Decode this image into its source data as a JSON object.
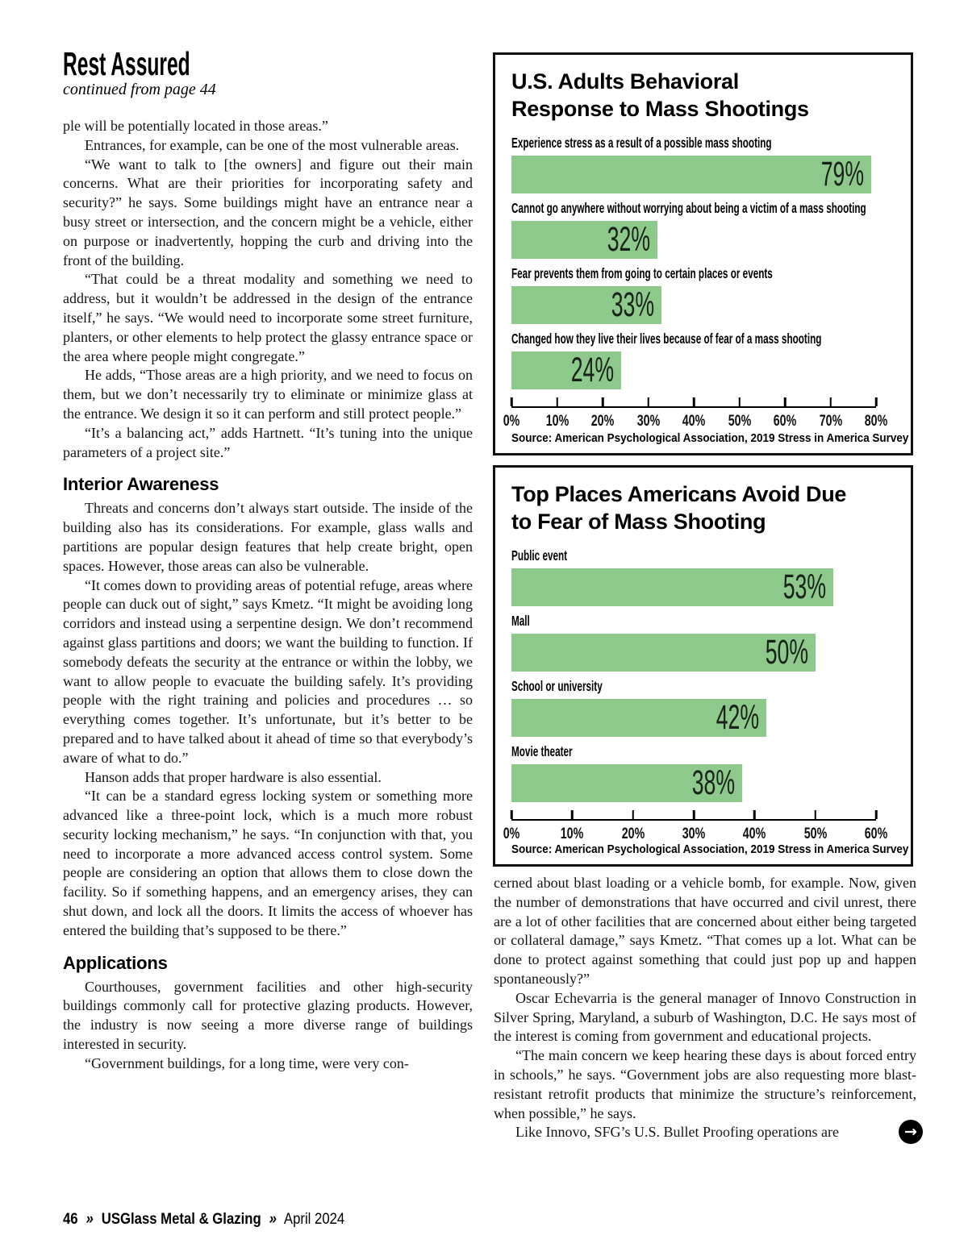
{
  "article": {
    "title": "Rest Assured",
    "continuation_note": "continued from page 44",
    "continue_arrow_glyph": "→",
    "left_column": [
      {
        "type": "p",
        "indent": false,
        "text": "ple will be potentially located in those areas.”"
      },
      {
        "type": "p",
        "indent": true,
        "text": "Entrances, for example, can be one of the most vulnerable areas."
      },
      {
        "type": "p",
        "indent": true,
        "text": "“We want to talk to [the owners] and figure out their main concerns. What are their priorities for incorporating safety and security?” he says. Some buildings might have an entrance near a busy street or intersection, and the concern might be a vehicle, either on purpose or inadvertently, hopping the curb and driving into the front of the building."
      },
      {
        "type": "p",
        "indent": true,
        "text": "“That could be a threat modality and something we need to address, but it wouldn’t be addressed in the design of the entrance itself,” he says. “We would need to incorporate some street furniture, planters, or other elements to help protect the glassy entrance space or the area where people might congregate.”"
      },
      {
        "type": "p",
        "indent": true,
        "text": "He adds, “Those areas are a high priority, and we need to focus on them, but we don’t necessarily try to eliminate or minimize glass at the entrance. We design it so it can perform and still protect people.”"
      },
      {
        "type": "p",
        "indent": true,
        "text": "“It’s a balancing act,” adds Hartnett. “It’s tuning into the unique parameters of a project site.”"
      },
      {
        "type": "h",
        "text": "Interior Awareness"
      },
      {
        "type": "p",
        "indent": true,
        "text": "Threats and concerns don’t always start outside. The inside of the building also has its considerations. For example, glass walls and partitions are popular design features that help create bright, open spaces. However, those areas can also be vulnerable."
      },
      {
        "type": "p",
        "indent": true,
        "text": "“It comes down to providing areas of potential refuge, areas where people can duck out of sight,” says Kmetz. “It might be avoiding long corridors and instead using a serpentine design. We don’t recommend against glass partitions and doors; we want the building to function. If somebody defeats the security at the entrance or within the lobby, we want to allow people to evacuate the building safely. It’s providing people with the right training and policies and procedures … so everything comes together. It’s unfortunate, but it’s better to be prepared and to have talked about it ahead of time so that everybody’s aware of what to do.”"
      },
      {
        "type": "p",
        "indent": true,
        "text": "Hanson adds that proper hardware is also essential."
      },
      {
        "type": "p",
        "indent": true,
        "text": "“It can be a standard egress locking system or something more advanced like a three-point lock, which is a much more robust security locking mechanism,” he says. “In conjunction with that, you need to incorporate a more advanced access control system. Some people are considering an option that allows them to close down the facility. So if something happens, and an emergency arises, they can shut down, and lock all the doors. It limits the access of whoever has entered the building that’s supposed to be there.”"
      },
      {
        "type": "h",
        "text": "Applications"
      },
      {
        "type": "p",
        "indent": true,
        "text": "Courthouses, government facilities and other high-security buildings commonly call for protective glazing products. However, the industry is now seeing a more diverse range of buildings interested in security."
      },
      {
        "type": "p",
        "indent": true,
        "text": "“Government buildings, for a long time, were very con-"
      }
    ],
    "right_column": [
      {
        "type": "p",
        "indent": false,
        "text": "cerned about blast loading or a vehicle bomb, for example. Now, given the number of demonstrations that have occurred and civil unrest, there are a lot of other facilities that are concerned about either being targeted or collateral damage,” says Kmetz. “That comes up a lot. What can be done to protect against something that could just pop up and happen spontaneously?”"
      },
      {
        "type": "p",
        "indent": true,
        "text": "Oscar Echevarria is the general manager of Innovo Construction in Silver Spring, Maryland, a suburb of Washington, D.C. He says most of the interest is coming from government and educational projects."
      },
      {
        "type": "p",
        "indent": true,
        "text": "“The main concern we keep hearing these days is about forced entry in schools,” he says. “Government jobs are also requesting more blast-resistant retrofit products that minimize the structure’s reinforcement, when possible,” he says."
      },
      {
        "type": "p",
        "indent": true,
        "text": "Like Innovo, SFG’s U.S. Bullet Proofing operations are"
      }
    ]
  },
  "footer": {
    "page_number": "46",
    "separator": "»",
    "magazine": "USGlass Metal & Glazing",
    "issue": "April 2024"
  },
  "chart_data": [
    {
      "type": "bar",
      "orientation": "horizontal",
      "title": "U.S. Adults Behavioral Response to Mass Shootings",
      "title_lines": [
        "U.S. Adults Behavioral",
        "Response to Mass Shootings"
      ],
      "categories": [
        "Experience stress as a result of a possible mass shooting",
        "Cannot go anywhere without worrying about being a victim of a mass shooting",
        "Fear prevents them from going to certain places or events",
        "Changed how they live their lives because of fear of a mass shooting"
      ],
      "values": [
        79,
        32,
        33,
        24
      ],
      "value_labels": [
        "79%",
        "32%",
        "33%",
        "24%"
      ],
      "xlim": [
        0,
        80
      ],
      "x_ticks": [
        "0%",
        "10%",
        "20%",
        "30%",
        "40%",
        "50%",
        "60%",
        "70%",
        "80%"
      ],
      "bar_color": "#8dc98a",
      "grid": false,
      "legend": "none",
      "source": "Source: American Psychological Association, 2019 Stress in America Survey"
    },
    {
      "type": "bar",
      "orientation": "horizontal",
      "title": "Top Places Americans Avoid Due to Fear of Mass Shooting",
      "title_lines": [
        "Top Places Americans Avoid Due",
        "to Fear of Mass Shooting"
      ],
      "categories": [
        "Public event",
        "Mall",
        "School or university",
        "Movie theater"
      ],
      "values": [
        53,
        50,
        42,
        38
      ],
      "value_labels": [
        "53%",
        "50%",
        "42%",
        "38%"
      ],
      "xlim": [
        0,
        60
      ],
      "x_ticks": [
        "0%",
        "10%",
        "20%",
        "30%",
        "40%",
        "50%",
        "60%"
      ],
      "bar_color": "#8dc98a",
      "grid": false,
      "legend": "none",
      "source": "Source: American Psychological Association, 2019 Stress in America Survey"
    }
  ]
}
